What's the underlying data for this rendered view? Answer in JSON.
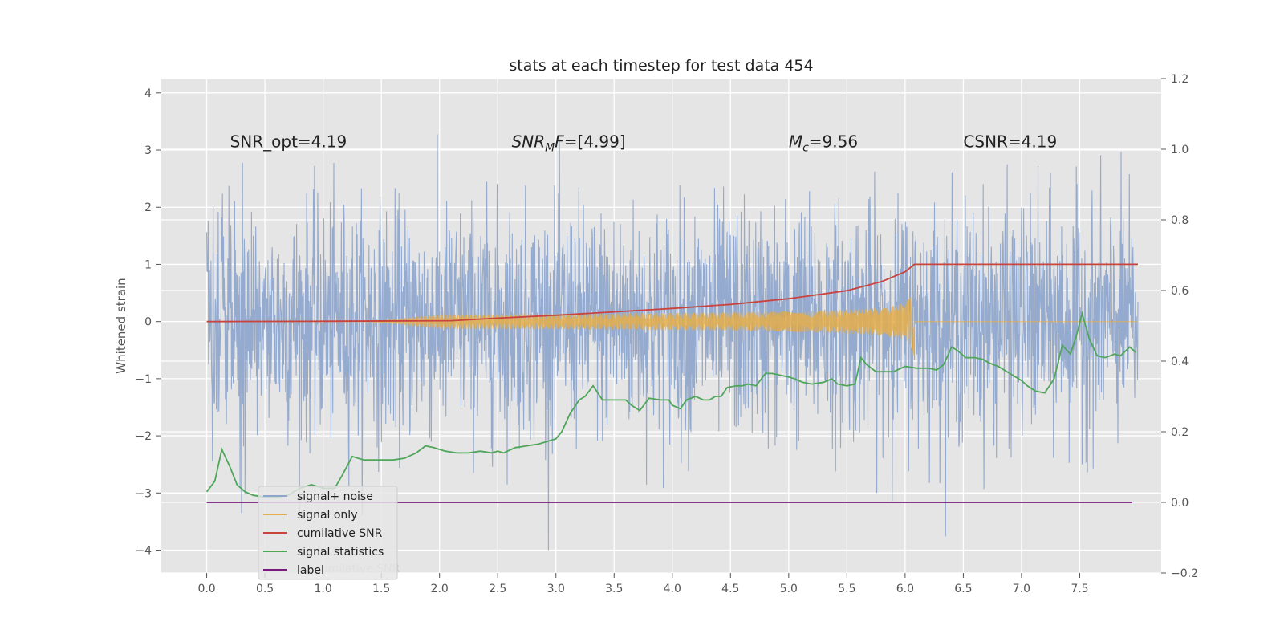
{
  "chart_data": {
    "type": "line",
    "title": "stats at each timestep for test data 454",
    "ylabel": "Whitened strain",
    "xlabel": "",
    "xlim": [
      -0.39,
      8.2
    ],
    "ylim": [
      -4.4,
      4.25
    ],
    "y2lim": [
      -0.2,
      1.2
    ],
    "xticks": [
      0.0,
      0.5,
      1.0,
      1.5,
      2.0,
      2.5,
      3.0,
      3.5,
      4.0,
      4.5,
      5.0,
      5.5,
      6.0,
      6.5,
      7.0,
      7.5
    ],
    "xtick_labels": [
      "0.0",
      "0.5",
      "1.0",
      "1.5",
      "2.0",
      "2.5",
      "3.0",
      "3.5",
      "4.0",
      "4.5",
      "5.0",
      "5.5",
      "6.0",
      "6.5",
      "7.0",
      "7.5"
    ],
    "yticks": [
      -4,
      -3,
      -2,
      -1,
      0,
      1,
      2,
      3,
      4
    ],
    "ytick_labels": [
      "−4",
      "−3",
      "−2",
      "−1",
      "0",
      "1",
      "2",
      "3",
      "4"
    ],
    "y2ticks": [
      -0.2,
      0.0,
      0.2,
      0.4,
      0.6,
      0.8,
      1.0,
      1.2
    ],
    "y2tick_labels": [
      "−0.2",
      "0.0",
      "0.2",
      "0.4",
      "0.6",
      "0.8",
      "1.0",
      "1.2"
    ],
    "grid": true,
    "legend_position": "lower-left",
    "annotations": [
      {
        "text": "SNR_opt=4.19",
        "x": 0.2,
        "y": 3.05
      },
      {
        "text_main": "SNR",
        "text_sub": "M",
        "text_rest": "F=[4.99]",
        "x": 2.62,
        "y": 3.05
      },
      {
        "text_main": "M",
        "text_sub": "c",
        "text_rest": "=9.56",
        "x": 5.0,
        "y": 3.05
      },
      {
        "text": "CSNR=4.19",
        "x": 6.5,
        "y": 3.05
      }
    ],
    "series": [
      {
        "name": "signal+ noise",
        "color": "#8fa6cc",
        "axis": "left",
        "kind": "noise",
        "x_range": [
          0.0,
          8.0
        ],
        "amplitude_std": 1.0,
        "y_range": [
          -4.0,
          3.85
        ]
      },
      {
        "name": "signal only",
        "color": "#e5ae4a",
        "axis": "left",
        "kind": "chirp",
        "x_range": [
          0.0,
          8.0
        ],
        "merger_x": 6.08,
        "peak_amplitude": 0.72
      },
      {
        "name": "cumilative SNR",
        "color": "#c9433f",
        "axis": "left",
        "x": [
          0.0,
          1.0,
          2.1,
          2.5,
          3.0,
          3.5,
          4.0,
          4.5,
          5.0,
          5.5,
          5.8,
          6.0,
          6.08,
          8.0
        ],
        "y": [
          0.0,
          0.005,
          0.015,
          0.06,
          0.11,
          0.17,
          0.23,
          0.3,
          0.4,
          0.54,
          0.7,
          0.87,
          1.0,
          1.0
        ]
      },
      {
        "name": "signal statistics",
        "color": "#4fa65a",
        "axis": "right",
        "x": [
          0.0,
          0.07,
          0.13,
          0.2,
          0.26,
          0.33,
          0.4,
          0.5,
          0.6,
          0.7,
          0.8,
          0.9,
          1.0,
          1.1,
          1.17,
          1.25,
          1.35,
          1.45,
          1.6,
          1.7,
          1.8,
          1.88,
          1.95,
          2.05,
          2.15,
          2.25,
          2.35,
          2.45,
          2.5,
          2.55,
          2.65,
          2.75,
          2.85,
          2.95,
          3.0,
          3.05,
          3.12,
          3.2,
          3.25,
          3.32,
          3.4,
          3.5,
          3.6,
          3.65,
          3.72,
          3.8,
          3.9,
          3.97,
          4.0,
          4.07,
          4.12,
          4.2,
          4.27,
          4.32,
          4.37,
          4.42,
          4.47,
          4.55,
          4.6,
          4.65,
          4.72,
          4.8,
          4.86,
          4.93,
          5.0,
          5.05,
          5.12,
          5.2,
          5.3,
          5.37,
          5.42,
          5.5,
          5.57,
          5.62,
          5.67,
          5.75,
          5.8,
          5.9,
          6.0,
          6.1,
          6.2,
          6.27,
          6.33,
          6.4,
          6.45,
          6.52,
          6.6,
          6.67,
          6.72,
          6.8,
          6.9,
          7.0,
          7.05,
          7.12,
          7.2,
          7.28,
          7.35,
          7.42,
          7.47,
          7.52,
          7.58,
          7.65,
          7.72,
          7.8,
          7.85,
          7.93,
          7.98
        ],
        "y": [
          0.03,
          0.06,
          0.15,
          0.1,
          0.05,
          0.03,
          0.02,
          0.015,
          0.015,
          0.02,
          0.04,
          0.05,
          0.04,
          0.04,
          0.08,
          0.13,
          0.12,
          0.12,
          0.12,
          0.125,
          0.14,
          0.16,
          0.155,
          0.145,
          0.14,
          0.14,
          0.145,
          0.14,
          0.145,
          0.14,
          0.155,
          0.16,
          0.165,
          0.175,
          0.18,
          0.2,
          0.25,
          0.29,
          0.3,
          0.33,
          0.29,
          0.29,
          0.29,
          0.275,
          0.26,
          0.295,
          0.29,
          0.29,
          0.275,
          0.265,
          0.29,
          0.3,
          0.29,
          0.29,
          0.3,
          0.3,
          0.325,
          0.33,
          0.33,
          0.335,
          0.33,
          0.365,
          0.365,
          0.36,
          0.355,
          0.35,
          0.34,
          0.335,
          0.34,
          0.35,
          0.335,
          0.33,
          0.335,
          0.41,
          0.39,
          0.37,
          0.37,
          0.37,
          0.385,
          0.38,
          0.38,
          0.375,
          0.39,
          0.44,
          0.43,
          0.41,
          0.41,
          0.405,
          0.395,
          0.385,
          0.365,
          0.345,
          0.33,
          0.315,
          0.31,
          0.35,
          0.445,
          0.42,
          0.47,
          0.535,
          0.465,
          0.415,
          0.41,
          0.42,
          0.415,
          0.44,
          0.425
        ]
      },
      {
        "name": "label",
        "color": "#7b1a7e",
        "axis": "right",
        "x": [
          0.0,
          7.95
        ],
        "y": [
          0.0,
          0.0
        ]
      }
    ],
    "legend_overlap_text": "cumilative SNR"
  }
}
